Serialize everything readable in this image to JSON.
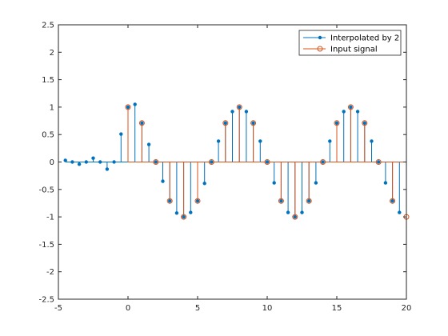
{
  "chart_data": {
    "type": "stem",
    "xlim": [
      -5,
      20
    ],
    "ylim": [
      -2.5,
      2.5
    ],
    "xticks": [
      "-5",
      "0",
      "5",
      "10",
      "15",
      "20"
    ],
    "yticks": [
      "-2.5",
      "-2",
      "-1.5",
      "-1",
      "-0.5",
      "0",
      "0.5",
      "1",
      "1.5",
      "2",
      "2.5"
    ],
    "grid": false,
    "legend_location": "top-right",
    "series": [
      {
        "name": "Interpolated by 2",
        "color": "#0072bd",
        "marker": "dot",
        "x": [
          -4.5,
          -4,
          -3.5,
          -3,
          -2.5,
          -2,
          -1.5,
          -1,
          -0.5,
          0,
          0.5,
          1,
          1.5,
          2,
          2.5,
          3,
          3.5,
          4,
          4.5,
          5,
          5.5,
          6,
          6.5,
          7,
          7.5,
          8,
          8.5,
          9,
          9.5,
          10,
          10.5,
          11,
          11.5,
          12,
          12.5,
          13,
          13.5,
          14,
          14.5,
          15,
          15.5,
          16,
          16.5,
          17,
          17.5,
          18,
          18.5,
          19,
          19.5
        ],
        "y": [
          0.03,
          0.0,
          -0.04,
          0.0,
          0.07,
          0.0,
          -0.13,
          0.0,
          0.51,
          1.0,
          1.05,
          0.71,
          0.32,
          0.0,
          -0.35,
          -0.71,
          -0.93,
          -1.0,
          -0.92,
          -0.71,
          -0.39,
          0.0,
          0.38,
          0.71,
          0.92,
          1.0,
          0.92,
          0.71,
          0.38,
          0.0,
          -0.38,
          -0.71,
          -0.92,
          -1.0,
          -0.92,
          -0.71,
          -0.38,
          0.0,
          0.38,
          0.71,
          0.92,
          1.0,
          0.92,
          0.71,
          0.38,
          0.0,
          -0.38,
          -0.71,
          -0.92
        ]
      },
      {
        "name": "Input signal",
        "color": "#d95319",
        "marker": "circle",
        "x": [
          0,
          1,
          2,
          3,
          4,
          5,
          6,
          7,
          8,
          9,
          10,
          11,
          12,
          13,
          14,
          15,
          16,
          17,
          18,
          19,
          20
        ],
        "y": [
          1.0,
          0.71,
          0.0,
          -0.71,
          -1.0,
          -0.71,
          0.0,
          0.71,
          1.0,
          0.71,
          0.0,
          -0.71,
          -1.0,
          -0.71,
          0.0,
          0.71,
          1.0,
          0.71,
          0.0,
          -0.71,
          -1.0
        ]
      }
    ]
  }
}
